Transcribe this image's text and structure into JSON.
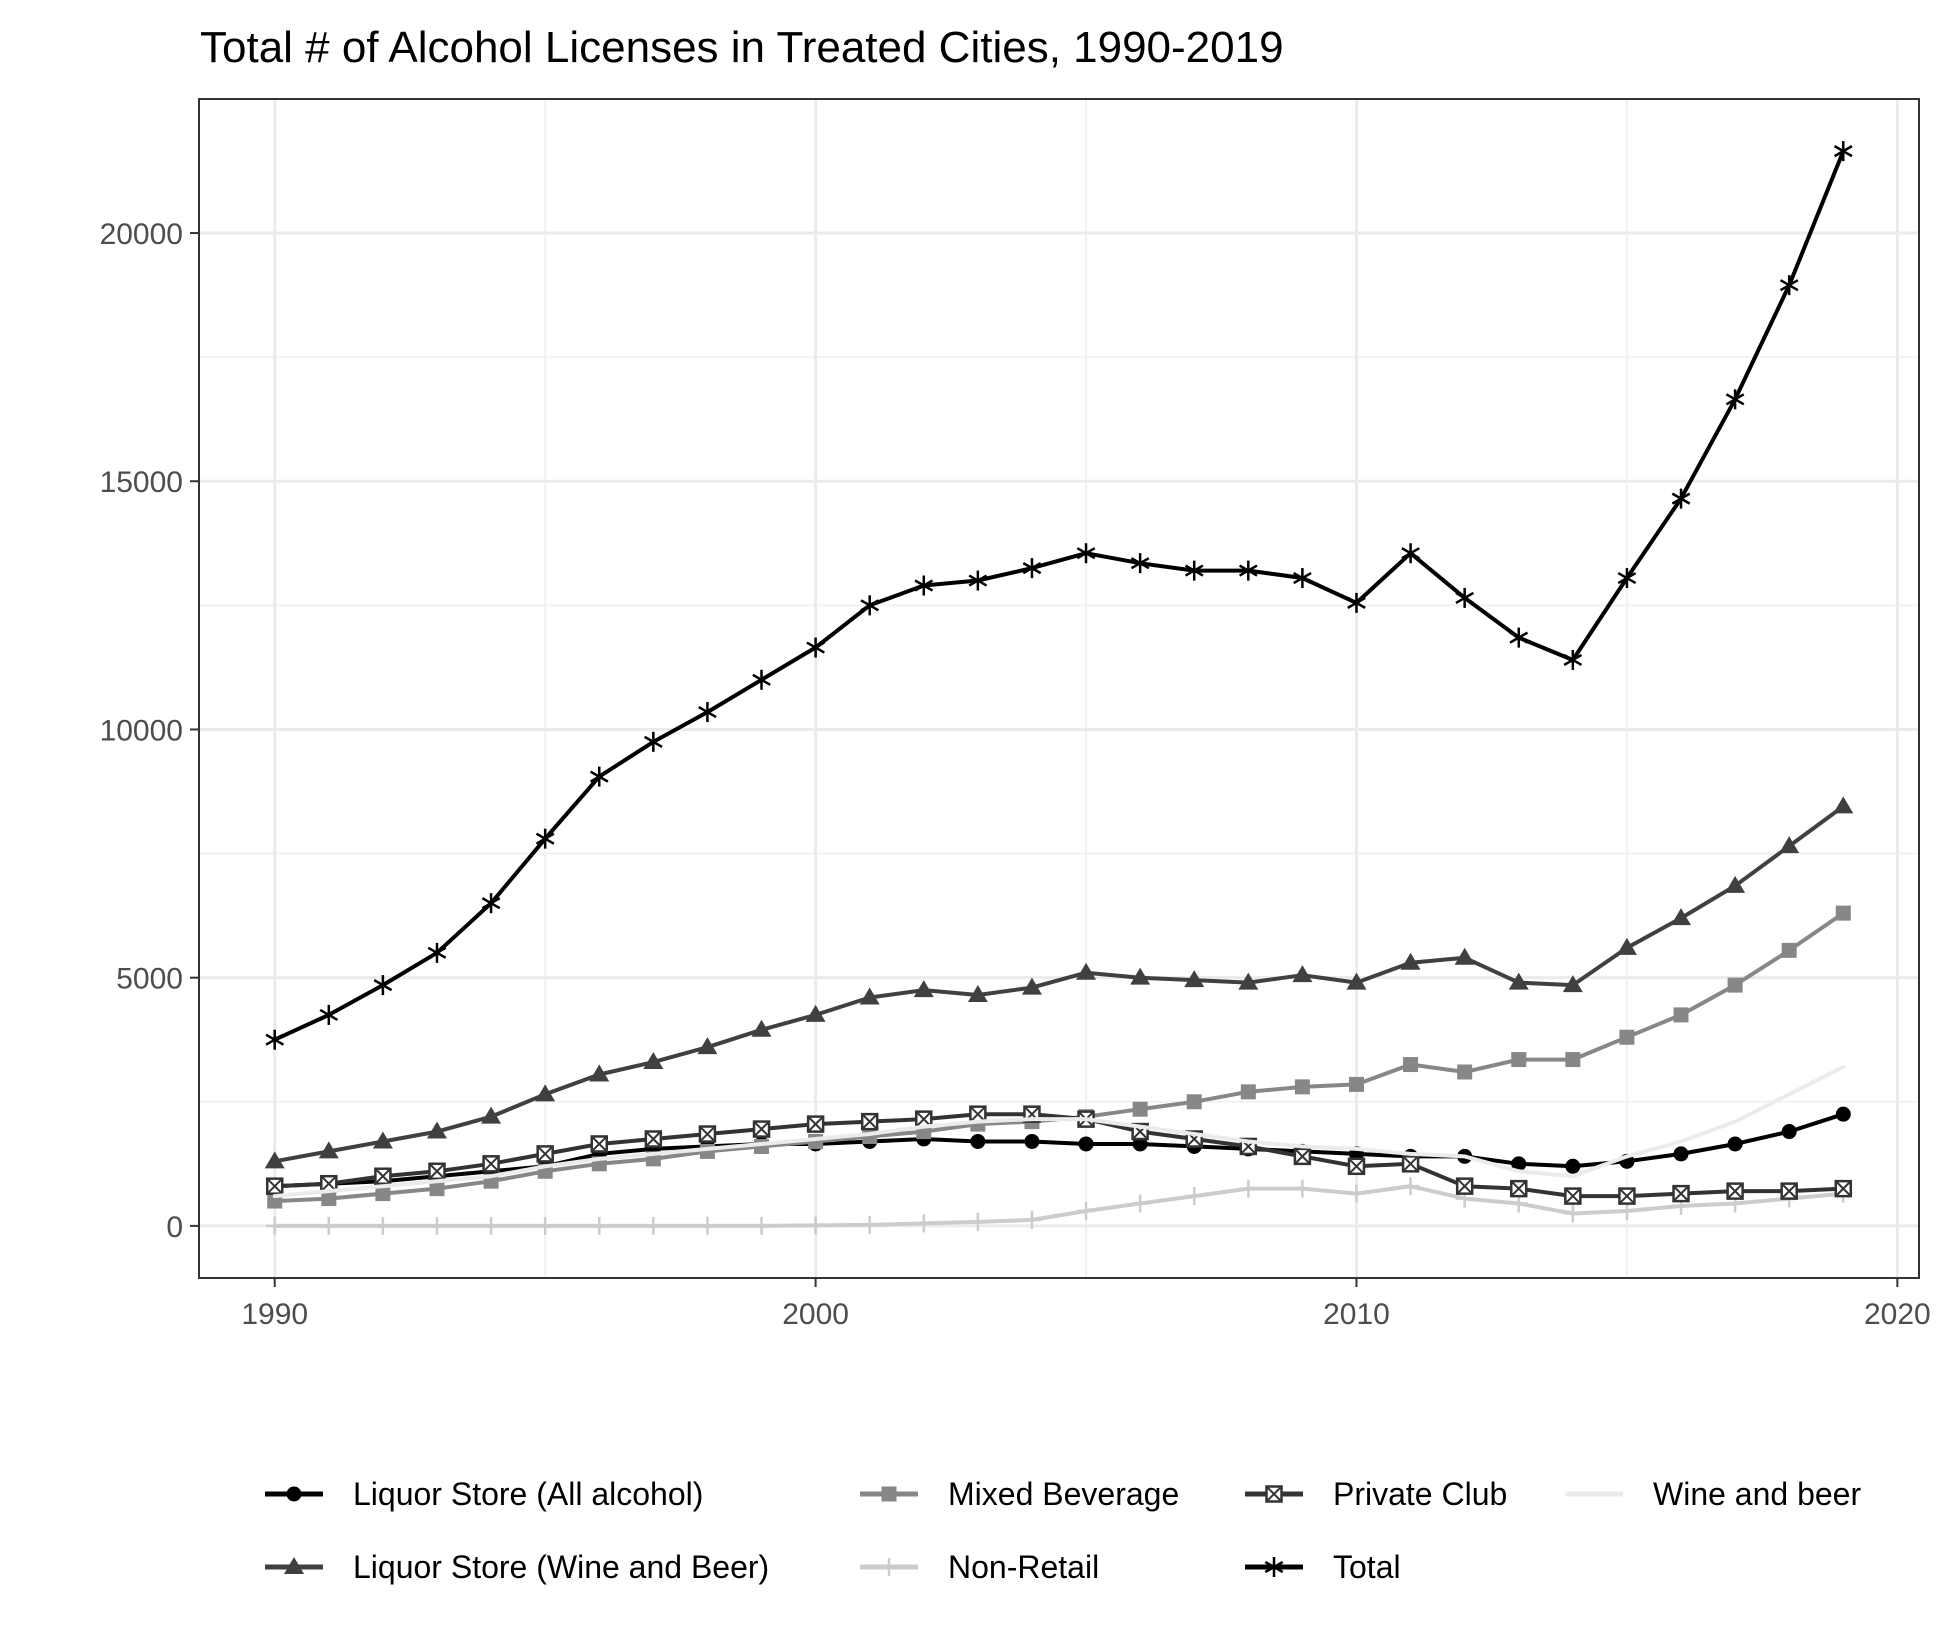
{
  "chart_data": {
    "type": "line",
    "title": "Total # of Alcohol Licenses in Treated Cities, 1990-2019",
    "xlabel": "",
    "ylabel": "",
    "xlim": [
      1988.6,
      2020.4
    ],
    "ylim": [
      -1050,
      22700
    ],
    "x_ticks": [
      1990,
      2000,
      2010,
      2020
    ],
    "x_tick_labels": [
      "1990",
      "2000",
      "2010",
      "2020"
    ],
    "y_ticks": [
      0,
      5000,
      10000,
      15000,
      20000
    ],
    "y_tick_labels": [
      "0",
      "5000",
      "10000",
      "15000",
      "20000"
    ],
    "x_minor_ticks": [
      1995,
      2005,
      2015
    ],
    "y_minor_ticks": [
      2500,
      7500,
      12500,
      17500
    ],
    "grid": true,
    "legend_position": "bottom",
    "x": [
      1990,
      1991,
      1992,
      1993,
      1994,
      1995,
      1996,
      1997,
      1998,
      1999,
      2000,
      2001,
      2002,
      2003,
      2004,
      2005,
      2006,
      2007,
      2008,
      2009,
      2010,
      2011,
      2012,
      2013,
      2014,
      2015,
      2016,
      2017,
      2018,
      2019
    ],
    "series": [
      {
        "name": "Liquor Store (All alcohol)",
        "color": "#000000",
        "marker": "circle",
        "linewidth": 4,
        "values": [
          800,
          850,
          900,
          1000,
          1100,
          1200,
          1450,
          1550,
          1600,
          1650,
          1650,
          1700,
          1750,
          1700,
          1700,
          1650,
          1650,
          1600,
          1550,
          1500,
          1450,
          1400,
          1400,
          1250,
          1200,
          1300,
          1450,
          1650,
          1900,
          2250
        ]
      },
      {
        "name": "Liquor Store (Wine and Beer)",
        "color": "#404040",
        "marker": "triangle",
        "linewidth": 4,
        "values": [
          1300,
          1500,
          1700,
          1900,
          2200,
          2650,
          3050,
          3300,
          3600,
          3950,
          4250,
          4600,
          4750,
          4650,
          4800,
          5100,
          5000,
          4950,
          4900,
          5050,
          4900,
          5300,
          5400,
          4900,
          4850,
          5600,
          6200,
          6850,
          7650,
          8450
        ]
      },
      {
        "name": "Mixed Beverage",
        "color": "#878787",
        "marker": "square",
        "linewidth": 4,
        "values": [
          500,
          550,
          650,
          750,
          900,
          1100,
          1250,
          1350,
          1500,
          1600,
          1700,
          1800,
          1900,
          2050,
          2100,
          2200,
          2350,
          2500,
          2700,
          2800,
          2850,
          3250,
          3100,
          3350,
          3350,
          3800,
          4250,
          4850,
          5550,
          6300
        ]
      },
      {
        "name": "Non-Retail",
        "color": "#cccccc",
        "marker": "plus",
        "linewidth": 4,
        "values": [
          0,
          0,
          0,
          0,
          0,
          0,
          0,
          0,
          0,
          0,
          10,
          20,
          50,
          80,
          120,
          300,
          450,
          600,
          750,
          750,
          650,
          800,
          550,
          450,
          250,
          300,
          400,
          450,
          550,
          650
        ]
      },
      {
        "name": "Private Club",
        "color": "#333333",
        "marker": "square-x",
        "linewidth": 4,
        "values": [
          800,
          850,
          1000,
          1100,
          1250,
          1450,
          1650,
          1750,
          1850,
          1950,
          2050,
          2100,
          2150,
          2250,
          2250,
          2150,
          1900,
          1750,
          1600,
          1400,
          1200,
          1250,
          800,
          750,
          600,
          600,
          650,
          700,
          700,
          750
        ]
      },
      {
        "name": "Total",
        "color": "#000000",
        "marker": "asterisk",
        "linewidth": 4,
        "values": [
          3750,
          4250,
          4850,
          5500,
          6500,
          7800,
          9050,
          9750,
          10350,
          11000,
          11650,
          12500,
          12900,
          13000,
          13250,
          13550,
          13350,
          13200,
          13200,
          13050,
          12550,
          13550,
          12650,
          11850,
          11400,
          13050,
          14650,
          16650,
          18950,
          21650
        ]
      },
      {
        "name": "Wine and beer",
        "color": "#ebebeb",
        "marker": "none",
        "linewidth": 4,
        "values": [
          600,
          700,
          800,
          900,
          1000,
          1200,
          1350,
          1450,
          1550,
          1650,
          1750,
          1850,
          2000,
          2100,
          2150,
          2150,
          2000,
          1850,
          1700,
          1600,
          1550,
          1450,
          1400,
          1100,
          1000,
          1400,
          1700,
          2100,
          2650,
          3200
        ]
      }
    ],
    "legend": [
      [
        "Liquor Store (All alcohol)",
        "Mixed Beverage",
        "Private Club",
        "Wine and beer"
      ],
      [
        "Liquor Store (Wine and Beer)",
        "Non-Retail",
        "Total"
      ]
    ]
  }
}
